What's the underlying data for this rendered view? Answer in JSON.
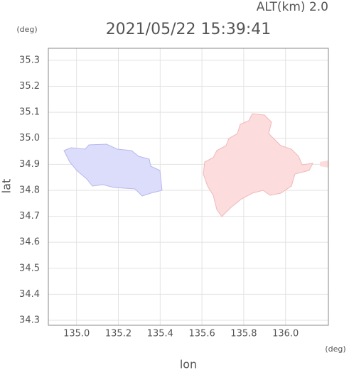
{
  "chart_data": {
    "type": "map",
    "title": "2021/05/22 15:39:41",
    "subtitle": "ALT(km) 2.0",
    "x_label": "lon",
    "y_label": "lat",
    "x_unit": "(deg)",
    "y_unit": "(deg)",
    "xlim": [
      134.865,
      136.205
    ],
    "ylim": [
      34.281,
      35.346
    ],
    "xticks": [
      {
        "value": 135.0,
        "label": "135.0"
      },
      135.2,
      135.4,
      135.6,
      135.8,
      {
        "value": 136.0,
        "label": "136.0"
      }
    ],
    "yticks": [
      34.3,
      34.4,
      34.5,
      34.6,
      34.7,
      34.8,
      34.9,
      {
        "value": 35.0,
        "label": "35.0"
      },
      35.1,
      35.2,
      35.3
    ],
    "grid": true
  }
}
